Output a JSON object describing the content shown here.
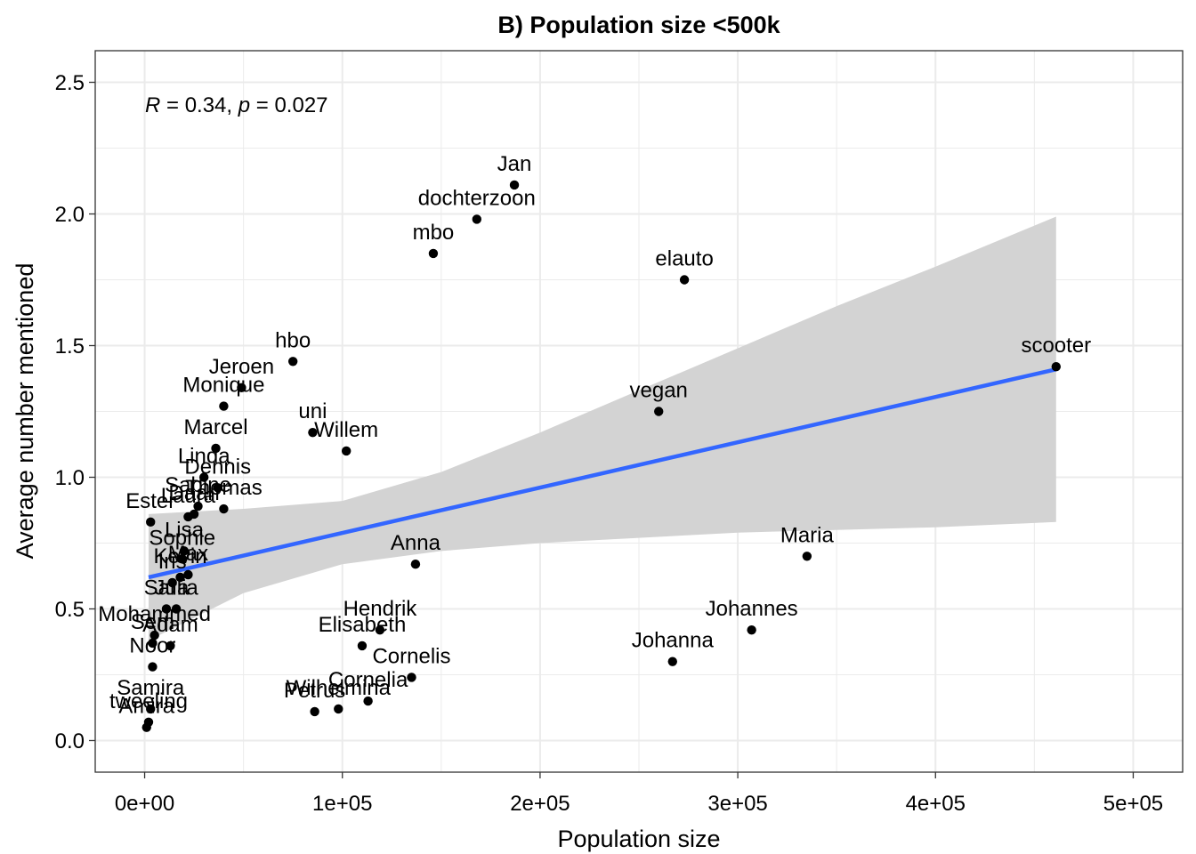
{
  "chart_data": {
    "type": "scatter",
    "title": "B) Population size <500k",
    "xlabel": "Population size",
    "ylabel": "Average number mentioned",
    "xlim": [
      -25000,
      525000
    ],
    "ylim": [
      -0.12,
      2.62
    ],
    "x_ticks": [
      0,
      100000,
      200000,
      300000,
      400000,
      500000
    ],
    "x_tick_labels": [
      "0e+00",
      "1e+05",
      "2e+05",
      "3e+05",
      "4e+05",
      "5e+05"
    ],
    "y_ticks": [
      0,
      0.5,
      1,
      1.5,
      2,
      2.5
    ],
    "y_tick_labels": [
      "0.0",
      "0.5",
      "1.0",
      "1.5",
      "2.0",
      "2.5"
    ],
    "grid": true,
    "annotation": {
      "r_symbol": "R",
      "r_value": " = 0.34, ",
      "p_symbol": "p",
      "p_value": " = 0.027"
    },
    "regression": {
      "x0": 2000,
      "y0": 0.62,
      "x1": 461000,
      "y1": 1.41
    },
    "confidence_band": {
      "x": [
        2000,
        50000,
        100000,
        150000,
        200000,
        250000,
        300000,
        350000,
        400000,
        461000
      ],
      "lower": [
        0.38,
        0.56,
        0.67,
        0.72,
        0.75,
        0.77,
        0.79,
        0.8,
        0.81,
        0.83
      ],
      "upper": [
        0.86,
        0.88,
        0.91,
        1.02,
        1.17,
        1.33,
        1.49,
        1.65,
        1.8,
        1.99
      ]
    },
    "colors": {
      "points": "#000000",
      "line": "#3366FF",
      "band": "#d3d3d3",
      "panel_border": "#333333",
      "grid": "#ebebeb"
    },
    "points": [
      {
        "label": "Jan",
        "x": 187000,
        "y": 2.11
      },
      {
        "label": "dochterzoon",
        "x": 168000,
        "y": 1.98
      },
      {
        "label": "mbo",
        "x": 146000,
        "y": 1.85
      },
      {
        "label": "elauto",
        "x": 273000,
        "y": 1.75
      },
      {
        "label": "scooter",
        "x": 461000,
        "y": 1.42
      },
      {
        "label": "vegan",
        "x": 260000,
        "y": 1.25
      },
      {
        "label": "hbo",
        "x": 75000,
        "y": 1.44
      },
      {
        "label": "Jeroen",
        "x": 49000,
        "y": 1.34
      },
      {
        "label": "Monique",
        "x": 40000,
        "y": 1.27
      },
      {
        "label": "uni",
        "x": 85000,
        "y": 1.17
      },
      {
        "label": "Willem",
        "x": 102000,
        "y": 1.1
      },
      {
        "label": "Marcel",
        "x": 36000,
        "y": 1.11
      },
      {
        "label": "Linda",
        "x": 30000,
        "y": 1.0
      },
      {
        "label": "Dennis",
        "x": 37000,
        "y": 0.96
      },
      {
        "label": "Sabine",
        "x": 27000,
        "y": 0.89
      },
      {
        "label": "Thomas",
        "x": 40000,
        "y": 0.88
      },
      {
        "label": "Daan",
        "x": 25000,
        "y": 0.86
      },
      {
        "label": "Laura",
        "x": 22000,
        "y": 0.85
      },
      {
        "label": "Ester",
        "x": 3000,
        "y": 0.83
      },
      {
        "label": "Lisa",
        "x": 20000,
        "y": 0.72
      },
      {
        "label": "Sophie",
        "x": 19000,
        "y": 0.69
      },
      {
        "label": "Max",
        "x": 22000,
        "y": 0.63
      },
      {
        "label": "Kevin",
        "x": 18000,
        "y": 0.62
      },
      {
        "label": "Iris",
        "x": 14000,
        "y": 0.6
      },
      {
        "label": "Anna",
        "x": 137000,
        "y": 0.67
      },
      {
        "label": "Maria",
        "x": 335000,
        "y": 0.7
      },
      {
        "label": "Julia",
        "x": 16000,
        "y": 0.5
      },
      {
        "label": "Sara",
        "x": 11000,
        "y": 0.5
      },
      {
        "label": "Mohammed",
        "x": 5000,
        "y": 0.4
      },
      {
        "label": "Sem",
        "x": 4000,
        "y": 0.37
      },
      {
        "label": "Adam",
        "x": 13000,
        "y": 0.36
      },
      {
        "label": "Noor",
        "x": 4000,
        "y": 0.28
      },
      {
        "label": "Hendrik",
        "x": 119000,
        "y": 0.42
      },
      {
        "label": "Elisabeth",
        "x": 110000,
        "y": 0.36
      },
      {
        "label": "Cornelis",
        "x": 135000,
        "y": 0.24
      },
      {
        "label": "Cornelia",
        "x": 113000,
        "y": 0.15
      },
      {
        "label": "Wilhelmina",
        "x": 98000,
        "y": 0.12
      },
      {
        "label": "Petrus",
        "x": 86000,
        "y": 0.11
      },
      {
        "label": "Johannes",
        "x": 307000,
        "y": 0.42
      },
      {
        "label": "Johanna",
        "x": 267000,
        "y": 0.3
      },
      {
        "label": "Samira",
        "x": 3000,
        "y": 0.12
      },
      {
        "label": "tweeling",
        "x": 2000,
        "y": 0.07
      },
      {
        "label": "Amira",
        "x": 1000,
        "y": 0.05
      }
    ]
  }
}
